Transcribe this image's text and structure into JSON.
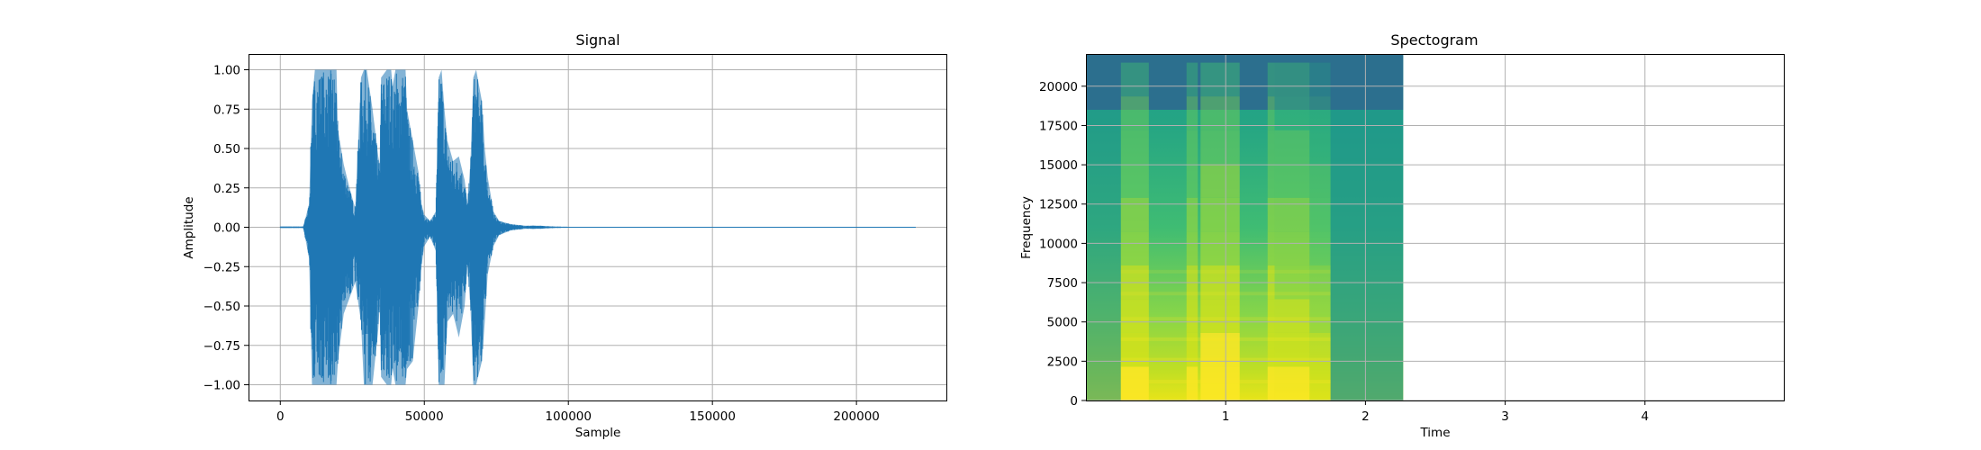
{
  "chart_data": [
    {
      "type": "line",
      "title": "Signal",
      "xlabel": "Sample",
      "ylabel": "Amplitude",
      "xlim": [
        -11025,
        231525
      ],
      "ylim": [
        -1.1,
        1.1
      ],
      "xticks": [
        0,
        50000,
        100000,
        150000,
        200000
      ],
      "xticklabels": [
        "0",
        "50000",
        "100000",
        "150000",
        "200000"
      ],
      "yticks": [
        1.0,
        0.75,
        0.5,
        0.25,
        0.0,
        -0.25,
        -0.5,
        -0.75,
        -1.0
      ],
      "yticklabels": [
        "1.00",
        "0.75",
        "0.50",
        "0.25",
        "0.00",
        "−0.25",
        "−0.50",
        "−0.75",
        "−1.00"
      ],
      "grid": true,
      "line_color": "#1f77b4",
      "series": [
        {
          "x": [
            0,
            8000,
            10000,
            11000,
            12000,
            14000,
            16000,
            18000,
            19500,
            20000,
            22000,
            24000,
            26000,
            28000,
            29000,
            30000,
            32000,
            34000,
            34500,
            35000,
            37000,
            38500,
            39000,
            40000,
            42000,
            43500,
            44000,
            46000,
            48000,
            49000,
            50000,
            52000,
            54000,
            55000,
            56000,
            57000,
            58000,
            60000,
            62000,
            64000,
            65000,
            66000,
            67000,
            68000,
            70000,
            71000,
            72000,
            74000,
            76000,
            80000,
            85000,
            90000,
            95000,
            100000,
            150000,
            220500
          ],
          "upper": [
            0.005,
            0.005,
            0.15,
            0.8,
            1.0,
            1.0,
            1.0,
            1.0,
            1.0,
            0.62,
            0.4,
            0.25,
            0.12,
            0.95,
            1.0,
            1.0,
            0.75,
            0.45,
            0.4,
            0.95,
            1.0,
            1.0,
            0.9,
            1.0,
            1.0,
            1.0,
            0.75,
            0.55,
            0.35,
            0.15,
            0.08,
            0.04,
            0.1,
            0.95,
            1.0,
            0.75,
            0.55,
            0.42,
            0.45,
            0.3,
            0.15,
            0.4,
            0.95,
            1.0,
            0.8,
            0.5,
            0.32,
            0.1,
            0.04,
            0.02,
            0.01,
            0.01,
            0.005,
            0.003,
            0.002,
            0.002
          ],
          "lower": [
            -0.005,
            -0.005,
            -0.2,
            -1.0,
            -1.0,
            -1.0,
            -1.0,
            -1.0,
            -1.0,
            -0.85,
            -0.55,
            -0.45,
            -0.35,
            -0.6,
            -1.0,
            -1.0,
            -1.0,
            -0.65,
            -0.5,
            -0.95,
            -1.0,
            -1.0,
            -0.9,
            -1.0,
            -1.0,
            -1.0,
            -0.9,
            -0.85,
            -0.5,
            -0.25,
            -0.12,
            -0.06,
            -0.15,
            -1.0,
            -1.0,
            -1.0,
            -0.6,
            -0.55,
            -0.7,
            -0.5,
            -0.25,
            -0.5,
            -1.0,
            -1.0,
            -0.85,
            -0.6,
            -0.3,
            -0.12,
            -0.05,
            -0.02,
            -0.01,
            -0.01,
            -0.005,
            -0.003,
            -0.002,
            -0.002
          ]
        }
      ]
    },
    {
      "type": "heatmap",
      "title": "Spectogram",
      "xlabel": "Time",
      "ylabel": "Frequency",
      "xlim": [
        0,
        5.0
      ],
      "ylim": [
        0,
        22050
      ],
      "xticks": [
        1,
        2,
        3,
        4
      ],
      "xticklabels": [
        "1",
        "2",
        "3",
        "4"
      ],
      "yticks": [
        0,
        2500,
        5000,
        7500,
        10000,
        12500,
        15000,
        17500,
        20000
      ],
      "yticklabels": [
        "0",
        "2500",
        "5000",
        "7500",
        "10000",
        "12500",
        "15000",
        "17500",
        "20000"
      ],
      "grid": true,
      "colormap": "viridis",
      "image_extent": {
        "t_start": 0.0,
        "t_end": 2.27,
        "f_start": 0,
        "f_end": 22050
      },
      "cutoff_frequency": 18500,
      "loud_bands": [
        {
          "t_start": 0.25,
          "t_end": 0.45,
          "level": 0.95
        },
        {
          "t_start": 0.72,
          "t_end": 0.8,
          "level": 0.88
        },
        {
          "t_start": 0.82,
          "t_end": 1.1,
          "level": 0.97
        },
        {
          "t_start": 1.3,
          "t_end": 1.35,
          "level": 0.9
        },
        {
          "t_start": 1.35,
          "t_end": 1.6,
          "level": 0.85
        },
        {
          "t_start": 1.6,
          "t_end": 1.75,
          "level": 0.55
        }
      ]
    }
  ]
}
